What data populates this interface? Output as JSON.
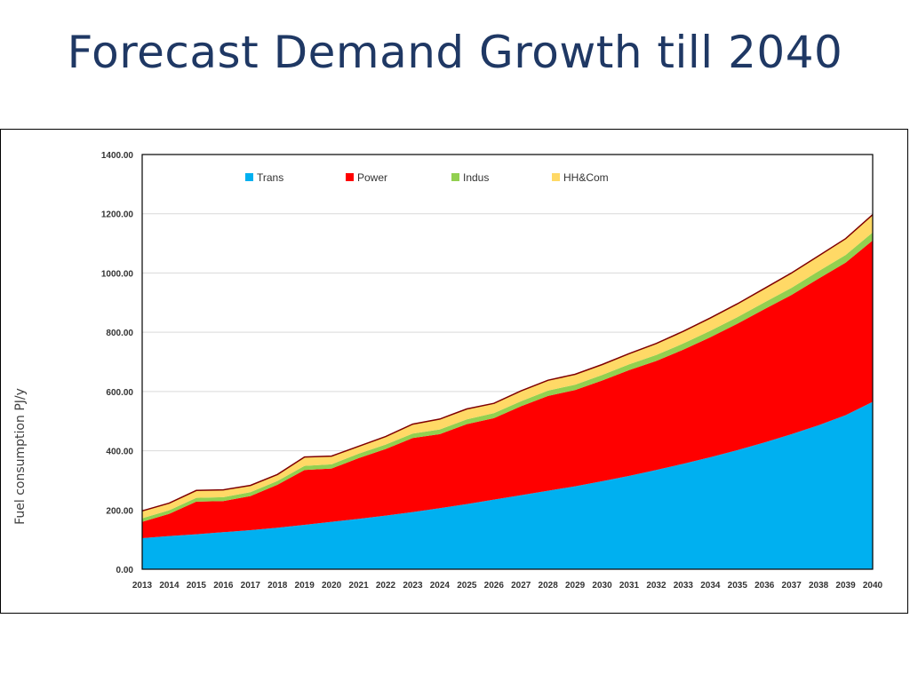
{
  "slide": {
    "title": "Forecast Demand Growth till 2040"
  },
  "colors": {
    "Trans": "#00b0f0",
    "Power": "#ff0000",
    "Indus": "#92d050",
    "HH&Com": "#ffd966",
    "title": "#1f3864"
  },
  "chart_data": {
    "type": "area",
    "stacked": true,
    "ylabel": "Fuel consumption PJ/y",
    "xlabel": "",
    "ylim": [
      0,
      1400
    ],
    "yticks": [
      "0.00",
      "200.00",
      "400.00",
      "600.00",
      "800.00",
      "1000.00",
      "1200.00",
      "1400.00"
    ],
    "grid": true,
    "legend_position": "top",
    "categories": [
      "2013",
      "2014",
      "2015",
      "2016",
      "2017",
      "2018",
      "2019",
      "2020",
      "2021",
      "2022",
      "2023",
      "2024",
      "2025",
      "2026",
      "2027",
      "2028",
      "2029",
      "2030",
      "2031",
      "2032",
      "2033",
      "2034",
      "2035",
      "2036",
      "2037",
      "2038",
      "2039",
      "2040"
    ],
    "series": [
      {
        "name": "Trans",
        "values": [
          105,
          112,
          118,
          125,
          132,
          140,
          150,
          160,
          170,
          181,
          193,
          206,
          220,
          235,
          250,
          265,
          280,
          297,
          315,
          335,
          356,
          378,
          402,
          428,
          456,
          486,
          520,
          565
        ]
      },
      {
        "name": "Power",
        "values": [
          55,
          75,
          110,
          105,
          115,
          145,
          185,
          180,
          205,
          225,
          250,
          250,
          270,
          275,
          300,
          320,
          325,
          340,
          357,
          368,
          385,
          405,
          427,
          450,
          470,
          495,
          515,
          545
        ]
      },
      {
        "name": "Indus",
        "values": [
          12,
          12,
          13,
          13,
          13,
          13,
          14,
          14,
          15,
          15,
          15,
          16,
          16,
          17,
          17,
          18,
          18,
          19,
          20,
          20,
          21,
          22,
          22,
          23,
          24,
          25,
          26,
          27
        ]
      },
      {
        "name": "HH&Com",
        "values": [
          25,
          24,
          25,
          25,
          23,
          22,
          30,
          28,
          25,
          27,
          32,
          35,
          35,
          33,
          35,
          35,
          35,
          35,
          36,
          39,
          41,
          43,
          45,
          47,
          50,
          52,
          55,
          60
        ]
      }
    ]
  }
}
